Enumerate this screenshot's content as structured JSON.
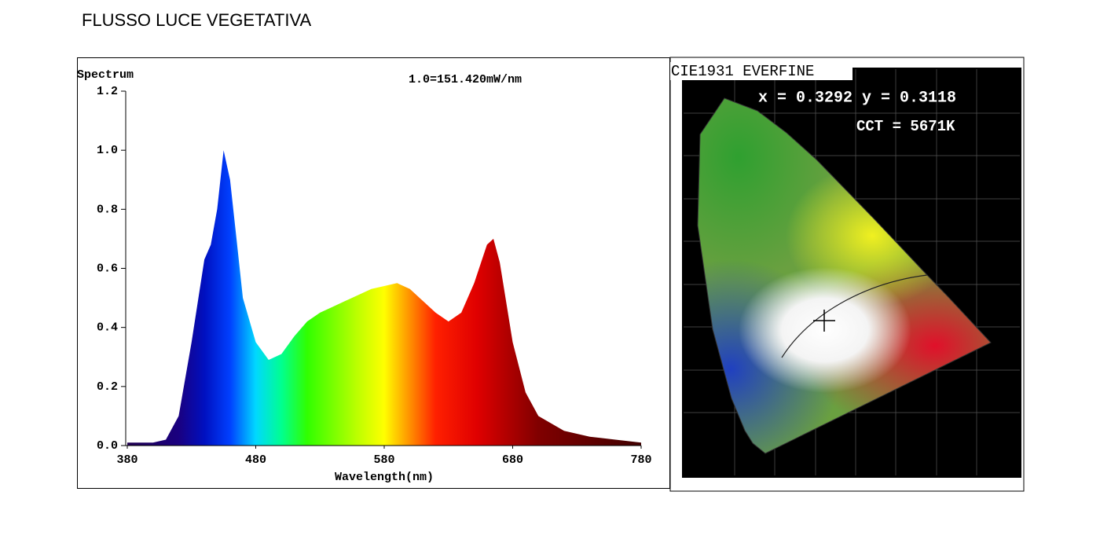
{
  "header": {
    "title": "FLUSSO LUCE VEGETATIVA"
  },
  "chart_data": {
    "type": "area",
    "ylabel": "Spectrum",
    "annotation": "1.0=151.420mW/nm",
    "xlabel": "Wavelength(nm)",
    "x": [
      380,
      400,
      410,
      420,
      430,
      440,
      445,
      450,
      455,
      460,
      465,
      470,
      480,
      490,
      500,
      510,
      520,
      530,
      540,
      550,
      560,
      570,
      580,
      590,
      600,
      610,
      620,
      630,
      640,
      650,
      660,
      665,
      670,
      680,
      690,
      700,
      720,
      740,
      760,
      780
    ],
    "values": [
      0.01,
      0.01,
      0.02,
      0.1,
      0.35,
      0.63,
      0.68,
      0.8,
      1.0,
      0.9,
      0.7,
      0.5,
      0.35,
      0.29,
      0.31,
      0.37,
      0.42,
      0.45,
      0.47,
      0.49,
      0.51,
      0.53,
      0.54,
      0.55,
      0.53,
      0.49,
      0.45,
      0.42,
      0.45,
      0.55,
      0.68,
      0.7,
      0.62,
      0.35,
      0.18,
      0.1,
      0.05,
      0.03,
      0.02,
      0.01
    ],
    "xlim": [
      380,
      780
    ],
    "xticks": [
      380,
      480,
      580,
      680,
      780
    ],
    "ylim": [
      0,
      1.2
    ],
    "yticks": [
      {
        "value": 0,
        "label": "0.0"
      },
      0.2,
      0.4,
      0.6,
      0.8,
      {
        "value": 1,
        "label": "1.0"
      },
      1.2
    ]
  },
  "cie": {
    "title": "CIE1931 EVERFINE",
    "coordinates": "x = 0.3292 y = 0.3118",
    "cct": "CCT = 5671K"
  }
}
